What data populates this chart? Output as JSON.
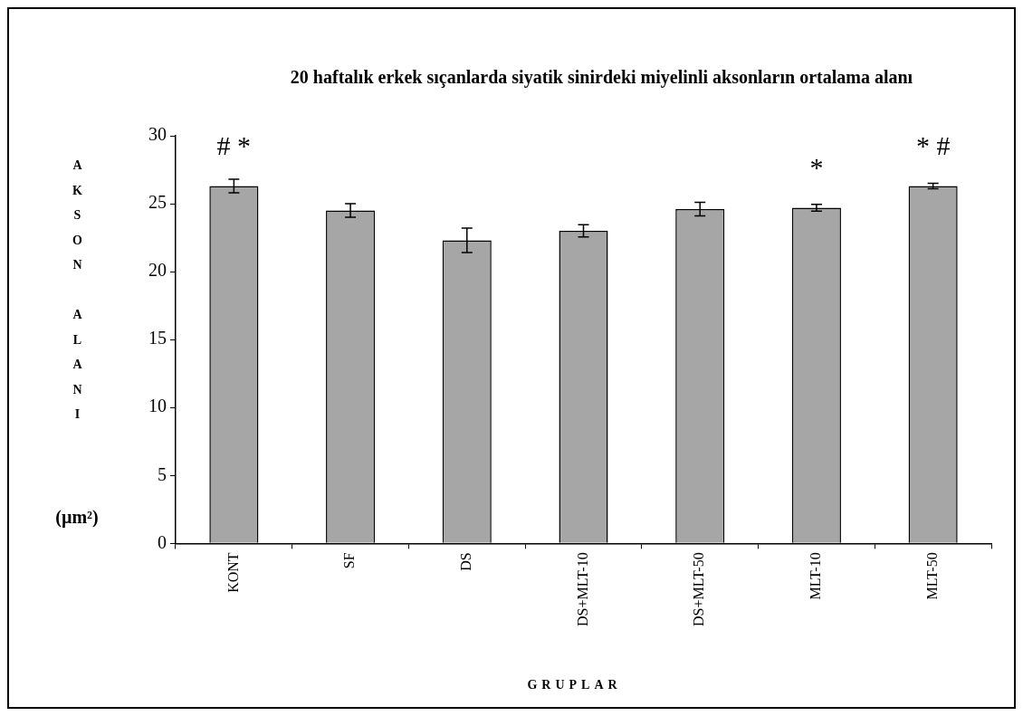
{
  "chart_data": {
    "type": "bar",
    "title": "20 haftalık erkek sıçanlarda siyatik sinirdeki miyelinli aksonların ortalama alanı",
    "xlabel": "GRUPLAR",
    "ylabel": "AKSON ALANI (µm²)",
    "categories": [
      "KONT",
      "SF",
      "DS",
      "DS+MLT-10",
      "DS+MLT-50",
      "MLT-10",
      "MLT-50"
    ],
    "values": [
      26.3,
      24.5,
      22.3,
      23.0,
      24.6,
      24.7,
      26.3
    ],
    "errors": [
      0.5,
      0.5,
      0.9,
      0.45,
      0.5,
      0.25,
      0.2
    ],
    "color": "#a6a6a6",
    "ylim": [
      0,
      30
    ],
    "yticks": [
      0,
      5,
      10,
      15,
      20,
      25,
      30
    ],
    "grid": false,
    "legend": false,
    "annotations": [
      {
        "text": "# *",
        "x": "KONT",
        "y": 26.3
      },
      {
        "text": "*",
        "x": "MLT-10",
        "y": 24.7
      },
      {
        "text": "* #",
        "x": "MLT-50",
        "y": 26.3
      }
    ]
  }
}
